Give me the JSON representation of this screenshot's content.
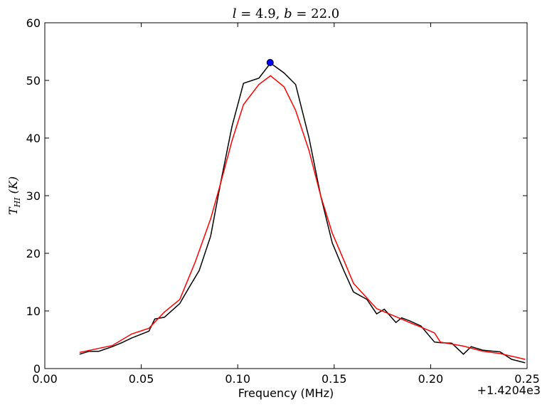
{
  "chart_data": {
    "type": "line",
    "title": "l = 4.9, b = 22.0",
    "xlabel": "Frequency (MHz)",
    "ylabel": "T_HI (K)",
    "x_offset_label": "+1.4204e3",
    "xlim": [
      0.0,
      0.25
    ],
    "ylim": [
      0,
      60
    ],
    "x_ticks": [
      "0.00",
      "0.05",
      "0.10",
      "0.15",
      "0.20",
      "0.25"
    ],
    "y_ticks": [
      "0",
      "10",
      "20",
      "30",
      "40",
      "50",
      "60"
    ],
    "grid": false,
    "colors": {
      "data": "#000000",
      "model": "#ff0000",
      "peak": "#0000ff"
    },
    "series": [
      {
        "x": [
          0.018,
          0.023,
          0.028,
          0.035,
          0.04,
          0.045,
          0.054,
          0.057,
          0.062,
          0.07,
          0.075,
          0.08,
          0.086,
          0.091,
          0.097,
          0.103,
          0.111,
          0.117,
          0.124,
          0.13,
          0.137,
          0.143,
          0.149,
          0.155,
          0.16,
          0.167,
          0.172,
          0.176,
          0.182,
          0.185,
          0.189,
          0.195,
          0.202,
          0.205,
          0.211,
          0.217,
          0.221,
          0.227,
          0.233,
          0.236,
          0.242,
          0.249
        ],
        "y": [
          2.5,
          3.0,
          3.0,
          3.8,
          4.5,
          5.3,
          6.5,
          8.6,
          8.9,
          11.3,
          14.2,
          17.0,
          23.0,
          32.0,
          42.0,
          49.5,
          50.4,
          53.0,
          51.3,
          49.3,
          40.0,
          30.0,
          21.8,
          17.0,
          13.3,
          12.0,
          9.5,
          10.3,
          8.0,
          8.8,
          8.3,
          7.4,
          4.6,
          4.5,
          4.4,
          2.5,
          3.8,
          3.2,
          3.0,
          2.9,
          1.6,
          1.0
        ]
      },
      {
        "x": [
          0.018,
          0.025,
          0.035,
          0.045,
          0.054,
          0.062,
          0.07,
          0.078,
          0.086,
          0.091,
          0.097,
          0.103,
          0.111,
          0.117,
          0.124,
          0.13,
          0.137,
          0.143,
          0.149,
          0.155,
          0.16,
          0.172,
          0.182,
          0.189,
          0.195,
          0.202,
          0.205,
          0.217,
          0.227,
          0.236,
          0.249
        ],
        "y": [
          2.8,
          3.3,
          4.0,
          6.0,
          7.0,
          9.8,
          12.0,
          18.5,
          26.0,
          32.0,
          39.5,
          45.8,
          49.3,
          50.8,
          48.9,
          44.8,
          37.8,
          30.0,
          23.5,
          18.8,
          14.8,
          10.4,
          9.0,
          8.0,
          7.2,
          6.2,
          4.6,
          3.9,
          3.0,
          2.6,
          1.6
        ]
      }
    ],
    "peak_point": {
      "x": 0.1168,
      "y": 53.1
    }
  }
}
